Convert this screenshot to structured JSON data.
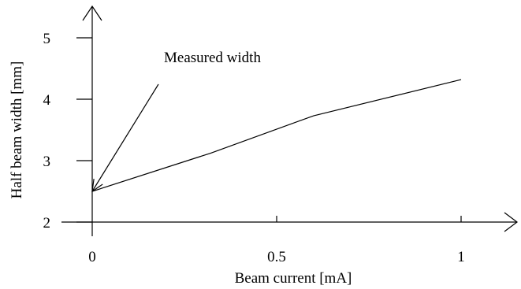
{
  "chart_data": {
    "type": "line",
    "title": "",
    "xlabel": "Beam current [mA]",
    "ylabel": "Half beam width [mm]",
    "xlim": [
      0,
      1
    ],
    "ylim": [
      2,
      5
    ],
    "x_ticks": [
      0,
      0.5,
      1
    ],
    "x_tick_labels": [
      "0",
      "0.5",
      "1"
    ],
    "y_ticks": [
      2,
      3,
      4,
      5
    ],
    "y_tick_labels": [
      "2",
      "3",
      "4",
      "5"
    ],
    "grid": false,
    "series": [
      {
        "x": [
          0,
          0.32,
          0.6,
          1.0
        ],
        "y": [
          2.5,
          3.12,
          3.73,
          4.32
        ]
      }
    ],
    "annotations": [
      {
        "text": "Measured width",
        "arrow_to": [
          0,
          2.5
        ]
      }
    ]
  }
}
